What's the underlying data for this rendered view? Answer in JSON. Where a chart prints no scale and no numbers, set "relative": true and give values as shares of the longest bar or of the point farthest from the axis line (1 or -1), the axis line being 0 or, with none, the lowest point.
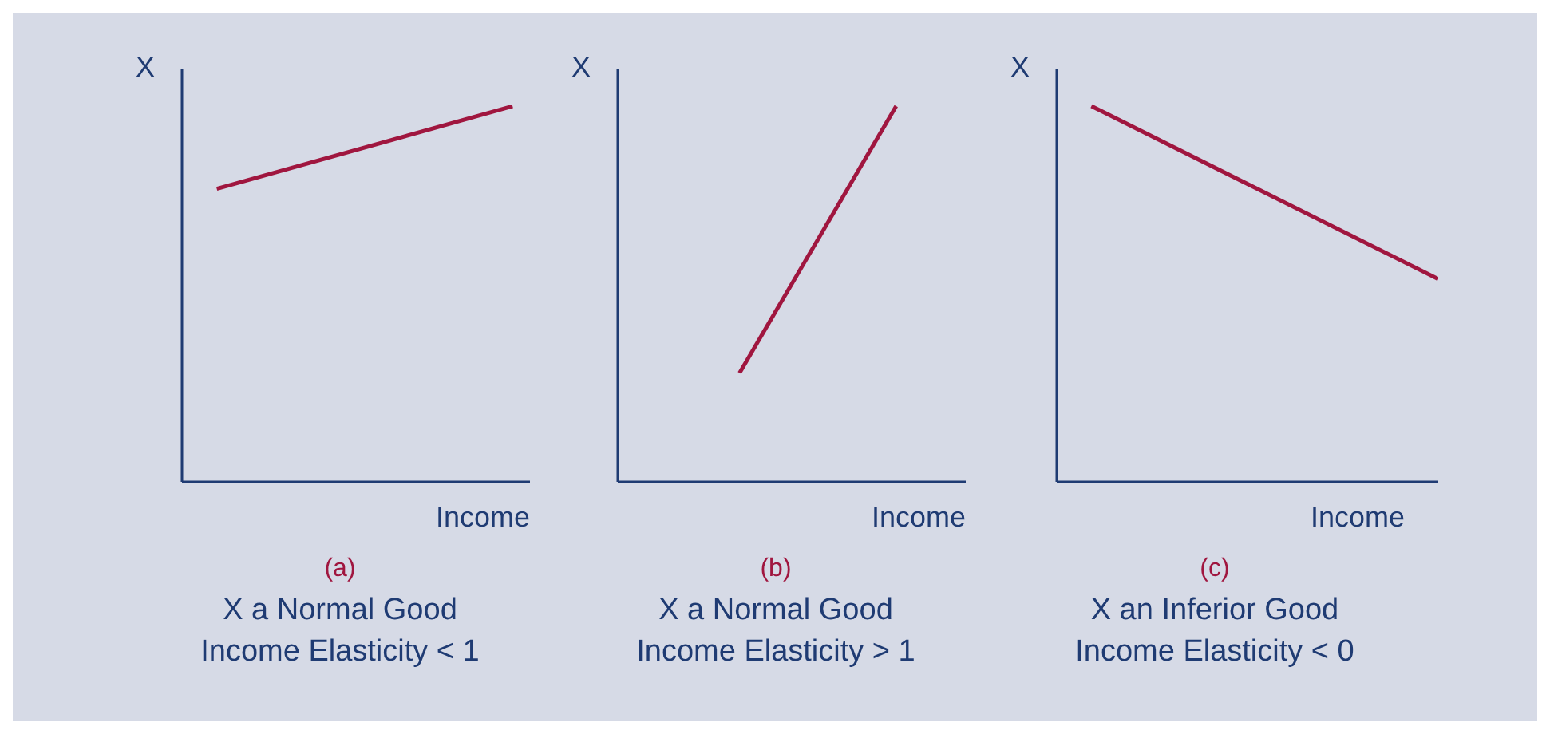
{
  "chart_data": [
    {
      "type": "line",
      "relative": true,
      "title": "(a)",
      "subtitle": "X a Normal Good",
      "annotations": [
        "Income Elasticity < 1"
      ],
      "xlabel": "Income",
      "ylabel": "X",
      "categories": [
        null,
        null,
        null,
        null,
        null,
        null,
        null,
        null,
        null,
        null,
        null,
        null,
        null,
        null,
        null,
        null,
        null,
        null,
        null,
        null,
        null
      ],
      "series": [
        {
          "color": "#a0163f",
          "values": [
            null,
            null,
            0.78,
            null,
            null,
            null,
            null,
            null,
            null,
            null,
            null,
            null,
            null,
            null,
            null,
            null,
            null,
            null,
            null,
            1,
            null
          ]
        }
      ]
    },
    {
      "type": "line",
      "relative": true,
      "title": "(b)",
      "subtitle": "X a Normal Good",
      "annotations": [
        "Income Elasticity > 1"
      ],
      "xlabel": "Income",
      "ylabel": "X",
      "categories": [
        null,
        null,
        null,
        null,
        null,
        null,
        null,
        null,
        null,
        null,
        null,
        null,
        null,
        null,
        null,
        null,
        null,
        null,
        null,
        null,
        null
      ],
      "series": [
        {
          "color": "#a0163f",
          "values": [
            null,
            null,
            null,
            null,
            null,
            null,
            null,
            0.29,
            null,
            null,
            null,
            null,
            null,
            null,
            null,
            null,
            1,
            null,
            null,
            null,
            null
          ]
        }
      ]
    },
    {
      "type": "line",
      "relative": true,
      "title": "(c)",
      "subtitle": "X an Inferior Good",
      "annotations": [
        "Income Elasticity < 0"
      ],
      "xlabel": "Income",
      "ylabel": "X",
      "categories": [
        null,
        null,
        null,
        null,
        null,
        null,
        null,
        null,
        null,
        null,
        null,
        null,
        null,
        null,
        null,
        null,
        null,
        null,
        null,
        null,
        null,
        null,
        null
      ],
      "series": [
        {
          "color": "#a0163f",
          "values": [
            null,
            null,
            1,
            null,
            null,
            null,
            null,
            null,
            null,
            null,
            null,
            null,
            null,
            null,
            null,
            null,
            null,
            null,
            null,
            null,
            null,
            null,
            0.54
          ]
        }
      ]
    }
  ]
}
